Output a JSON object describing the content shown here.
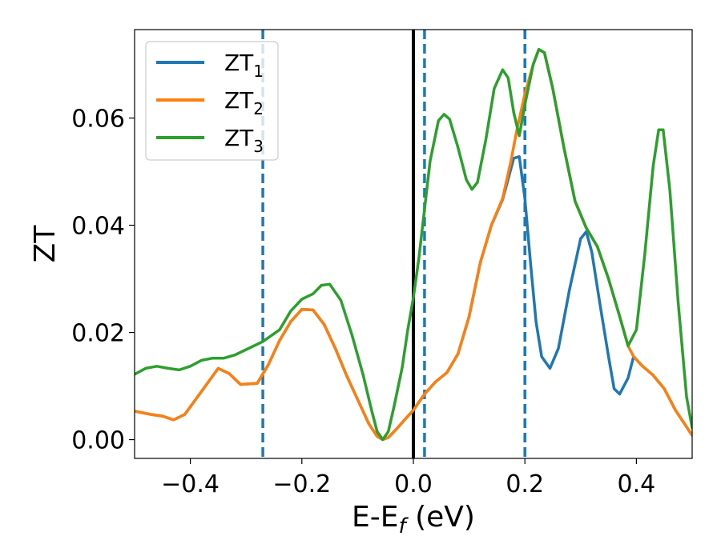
{
  "chart_data": {
    "type": "line",
    "xlabel": "E-E",
    "xlabel_sub": "f",
    "xlabel_unit": " (eV)",
    "ylabel": "ZT",
    "xlim": [
      -0.5,
      0.5
    ],
    "ylim": [
      -0.0035,
      0.0765
    ],
    "grid": false,
    "legend_position": "upper-left",
    "x_ticks": [
      -0.4,
      -0.2,
      0.0,
      0.2,
      0.4
    ],
    "x_tick_labels": [
      "−0.4",
      "−0.2",
      "0.0",
      "0.2",
      "0.4"
    ],
    "y_ticks": [
      0.0,
      0.02,
      0.04,
      0.06
    ],
    "y_tick_labels": [
      "0.00",
      "0.02",
      "0.04",
      "0.06"
    ],
    "vertical_lines": [
      {
        "x": 0.0,
        "style": "solid",
        "color": "#000000"
      },
      {
        "x": -0.27,
        "style": "dashed",
        "color": "#1f77b4"
      },
      {
        "x": 0.02,
        "style": "dashed",
        "color": "#1f77b4"
      },
      {
        "x": 0.2,
        "style": "dashed",
        "color": "#1f77b4"
      }
    ],
    "series": [
      {
        "name": "ZT",
        "name_sub": "1",
        "color": "#1f77b4",
        "points": [
          [
            -0.5,
            0.0053
          ],
          [
            -0.47,
            0.0047
          ],
          [
            -0.45,
            0.0044
          ],
          [
            -0.43,
            0.0037
          ],
          [
            -0.41,
            0.0047
          ],
          [
            -0.38,
            0.009
          ],
          [
            -0.35,
            0.0133
          ],
          [
            -0.33,
            0.0123
          ],
          [
            -0.31,
            0.0103
          ],
          [
            -0.28,
            0.0105
          ],
          [
            -0.26,
            0.014
          ],
          [
            -0.24,
            0.0185
          ],
          [
            -0.22,
            0.022
          ],
          [
            -0.2,
            0.0243
          ],
          [
            -0.18,
            0.0242
          ],
          [
            -0.16,
            0.0215
          ],
          [
            -0.14,
            0.017
          ],
          [
            -0.12,
            0.012
          ],
          [
            -0.1,
            0.0075
          ],
          [
            -0.08,
            0.003
          ],
          [
            -0.065,
            0.0006
          ],
          [
            -0.055,
            0.0
          ],
          [
            -0.045,
            0.0004
          ],
          [
            -0.03,
            0.002
          ],
          [
            -0.015,
            0.0038
          ],
          [
            0.0,
            0.0055
          ],
          [
            0.02,
            0.0085
          ],
          [
            0.04,
            0.0108
          ],
          [
            0.06,
            0.0125
          ],
          [
            0.08,
            0.016
          ],
          [
            0.1,
            0.023
          ],
          [
            0.12,
            0.033
          ],
          [
            0.14,
            0.04
          ],
          [
            0.16,
            0.0448
          ],
          [
            0.18,
            0.0525
          ],
          [
            0.19,
            0.0528
          ],
          [
            0.2,
            0.045
          ],
          [
            0.21,
            0.033
          ],
          [
            0.22,
            0.022
          ],
          [
            0.23,
            0.0155
          ],
          [
            0.245,
            0.0133
          ],
          [
            0.26,
            0.017
          ],
          [
            0.28,
            0.028
          ],
          [
            0.3,
            0.0375
          ],
          [
            0.31,
            0.0388
          ],
          [
            0.32,
            0.035
          ],
          [
            0.335,
            0.025
          ],
          [
            0.35,
            0.0155
          ],
          [
            0.36,
            0.0095
          ],
          [
            0.37,
            0.0085
          ],
          [
            0.385,
            0.0115
          ],
          [
            0.395,
            0.0155
          ],
          [
            0.41,
            0.0138
          ],
          [
            0.43,
            0.012
          ],
          [
            0.45,
            0.0095
          ],
          [
            0.47,
            0.0055
          ],
          [
            0.5,
            0.0008
          ]
        ]
      },
      {
        "name": "ZT",
        "name_sub": "2",
        "color": "#ff7f0e",
        "points": [
          [
            -0.5,
            0.0053
          ],
          [
            -0.47,
            0.0047
          ],
          [
            -0.45,
            0.0044
          ],
          [
            -0.43,
            0.0037
          ],
          [
            -0.41,
            0.0047
          ],
          [
            -0.38,
            0.009
          ],
          [
            -0.35,
            0.0133
          ],
          [
            -0.33,
            0.0123
          ],
          [
            -0.31,
            0.0103
          ],
          [
            -0.28,
            0.0105
          ],
          [
            -0.26,
            0.014
          ],
          [
            -0.24,
            0.0185
          ],
          [
            -0.22,
            0.022
          ],
          [
            -0.2,
            0.0243
          ],
          [
            -0.18,
            0.0242
          ],
          [
            -0.16,
            0.0215
          ],
          [
            -0.14,
            0.017
          ],
          [
            -0.12,
            0.012
          ],
          [
            -0.1,
            0.0075
          ],
          [
            -0.08,
            0.003
          ],
          [
            -0.065,
            0.0006
          ],
          [
            -0.055,
            0.0
          ],
          [
            -0.045,
            0.0004
          ],
          [
            -0.03,
            0.002
          ],
          [
            -0.015,
            0.0038
          ],
          [
            0.0,
            0.0055
          ],
          [
            0.02,
            0.0085
          ],
          [
            0.04,
            0.0108
          ],
          [
            0.06,
            0.0125
          ],
          [
            0.08,
            0.016
          ],
          [
            0.1,
            0.023
          ],
          [
            0.12,
            0.033
          ],
          [
            0.14,
            0.04
          ],
          [
            0.16,
            0.045
          ],
          [
            0.175,
            0.052
          ],
          [
            0.185,
            0.0575
          ],
          [
            0.2,
            0.0645
          ],
          [
            0.215,
            0.07
          ],
          [
            0.225,
            0.0728
          ],
          [
            0.235,
            0.0722
          ],
          [
            0.25,
            0.0655
          ],
          [
            0.27,
            0.0545
          ],
          [
            0.29,
            0.0445
          ],
          [
            0.31,
            0.0395
          ],
          [
            0.33,
            0.036
          ],
          [
            0.35,
            0.03
          ],
          [
            0.37,
            0.023
          ],
          [
            0.385,
            0.0175
          ],
          [
            0.395,
            0.0155
          ],
          [
            0.41,
            0.0138
          ],
          [
            0.43,
            0.012
          ],
          [
            0.45,
            0.0095
          ],
          [
            0.47,
            0.0055
          ],
          [
            0.5,
            0.0008
          ]
        ]
      },
      {
        "name": "ZT",
        "name_sub": "3",
        "color": "#2ca02c",
        "points": [
          [
            -0.5,
            0.0122
          ],
          [
            -0.48,
            0.0133
          ],
          [
            -0.46,
            0.0137
          ],
          [
            -0.44,
            0.0133
          ],
          [
            -0.42,
            0.013
          ],
          [
            -0.4,
            0.0137
          ],
          [
            -0.38,
            0.0148
          ],
          [
            -0.36,
            0.0152
          ],
          [
            -0.34,
            0.0152
          ],
          [
            -0.32,
            0.0158
          ],
          [
            -0.3,
            0.0168
          ],
          [
            -0.27,
            0.0183
          ],
          [
            -0.24,
            0.0205
          ],
          [
            -0.22,
            0.024
          ],
          [
            -0.2,
            0.0262
          ],
          [
            -0.18,
            0.0272
          ],
          [
            -0.165,
            0.0288
          ],
          [
            -0.15,
            0.029
          ],
          [
            -0.13,
            0.026
          ],
          [
            -0.11,
            0.0195
          ],
          [
            -0.09,
            0.012
          ],
          [
            -0.075,
            0.0055
          ],
          [
            -0.065,
            0.0015
          ],
          [
            -0.055,
            0.0
          ],
          [
            -0.045,
            0.0015
          ],
          [
            -0.035,
            0.006
          ],
          [
            -0.02,
            0.0135
          ],
          [
            -0.01,
            0.0205
          ],
          [
            0.0,
            0.0265
          ],
          [
            0.01,
            0.034
          ],
          [
            0.02,
            0.043
          ],
          [
            0.03,
            0.052
          ],
          [
            0.045,
            0.0595
          ],
          [
            0.055,
            0.0607
          ],
          [
            0.065,
            0.0598
          ],
          [
            0.08,
            0.0545
          ],
          [
            0.095,
            0.0485
          ],
          [
            0.105,
            0.0467
          ],
          [
            0.115,
            0.048
          ],
          [
            0.13,
            0.056
          ],
          [
            0.145,
            0.0655
          ],
          [
            0.16,
            0.069
          ],
          [
            0.17,
            0.0675
          ],
          [
            0.18,
            0.061
          ],
          [
            0.19,
            0.0567
          ],
          [
            0.2,
            0.0625
          ],
          [
            0.215,
            0.07
          ],
          [
            0.225,
            0.0728
          ],
          [
            0.235,
            0.0722
          ],
          [
            0.25,
            0.0655
          ],
          [
            0.27,
            0.0545
          ],
          [
            0.29,
            0.0445
          ],
          [
            0.31,
            0.0395
          ],
          [
            0.33,
            0.036
          ],
          [
            0.35,
            0.03
          ],
          [
            0.37,
            0.023
          ],
          [
            0.385,
            0.0175
          ],
          [
            0.4,
            0.0205
          ],
          [
            0.415,
            0.0345
          ],
          [
            0.43,
            0.051
          ],
          [
            0.44,
            0.0578
          ],
          [
            0.448,
            0.0578
          ],
          [
            0.46,
            0.0465
          ],
          [
            0.475,
            0.0255
          ],
          [
            0.49,
            0.008
          ],
          [
            0.5,
            0.0022
          ]
        ]
      }
    ]
  }
}
